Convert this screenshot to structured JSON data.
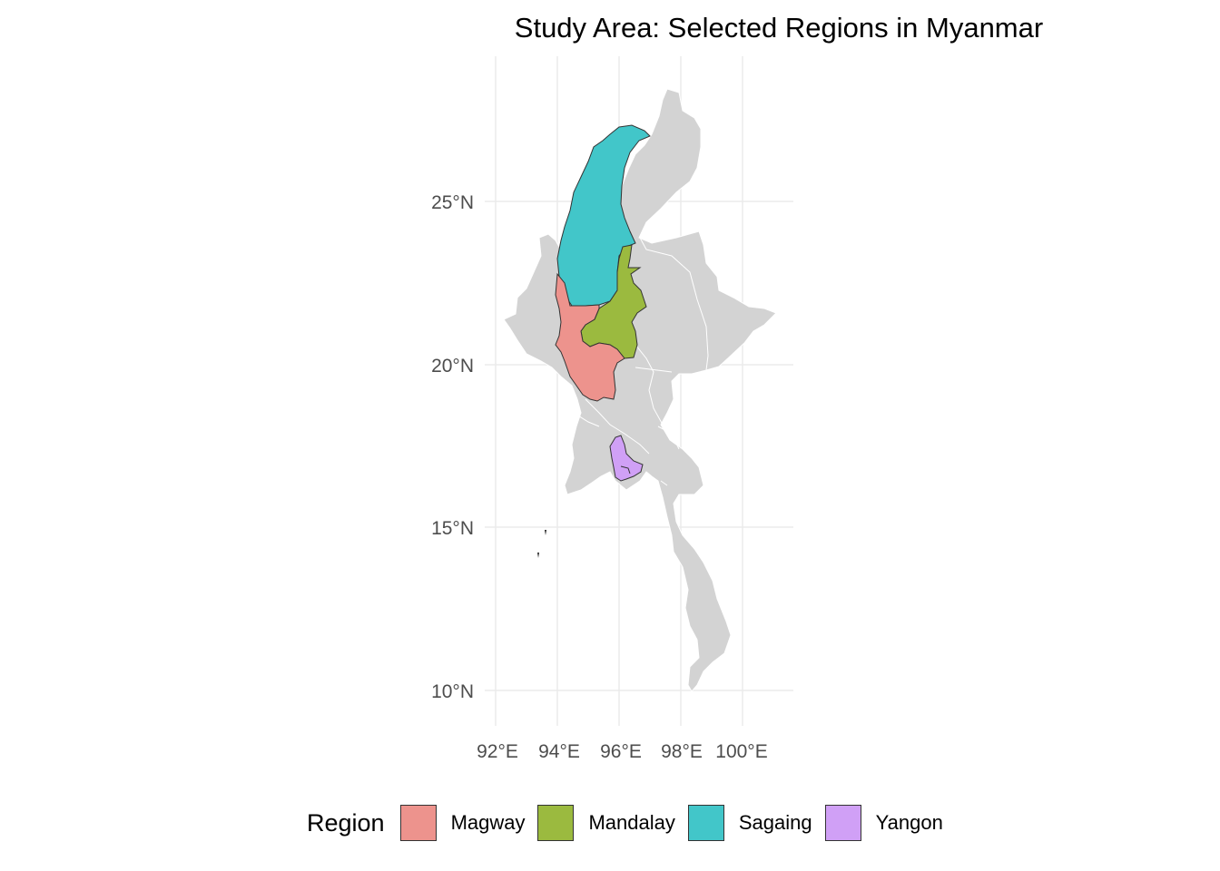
{
  "title": "Study Area: Selected Regions in Myanmar",
  "map": {
    "lat_ticks": [
      "25°N",
      "20°N",
      "15°N",
      "10°N"
    ],
    "lon_ticks": [
      "92°E",
      "94°E",
      "96°E",
      "98°E",
      "100°E"
    ],
    "background_color": "#d3d3d3",
    "gridline_color": "#ebebeb"
  },
  "legend": {
    "title": "Region",
    "items": [
      {
        "label": "Magway",
        "color": "#ed938d"
      },
      {
        "label": "Mandalay",
        "color": "#9bba3f"
      },
      {
        "label": "Sagaing",
        "color": "#42c6c9"
      },
      {
        "label": "Yangon",
        "color": "#d0a0f6"
      }
    ]
  }
}
